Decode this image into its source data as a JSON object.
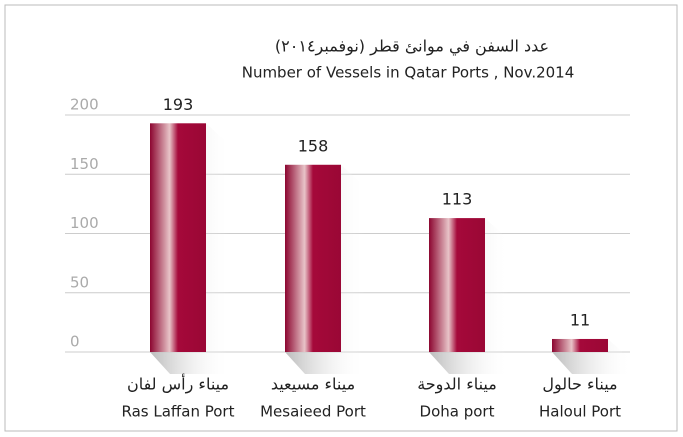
{
  "chart_data": {
    "type": "bar",
    "title": "عدد السفن في موانئ قطر (نوفمبر٢٠١٤)",
    "subtitle": "Number of Vessels  in Qatar Ports , Nov.2014",
    "categories": [
      "Ras Laffan Port",
      "Mesaieed Port",
      "Doha port",
      "Haloul Port"
    ],
    "categories_arabic": [
      "ميناء رأس لفان",
      "ميناء مسيعيد",
      "ميناء الدوحة",
      "ميناء حالول"
    ],
    "values": [
      193,
      158,
      113,
      11
    ],
    "color": "#a5093a",
    "ylim": [
      0,
      200
    ],
    "yticks": [
      0,
      50,
      100,
      150,
      200
    ],
    "grid": true
  }
}
